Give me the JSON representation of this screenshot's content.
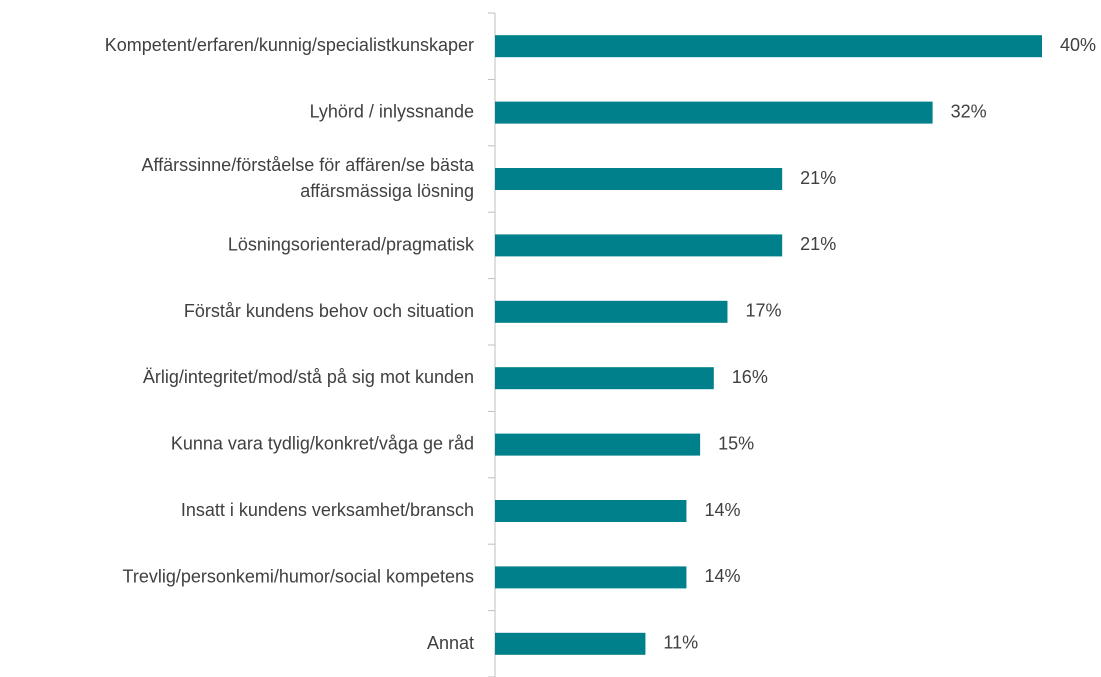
{
  "chart_data": {
    "type": "barh",
    "categories": [
      "Kompetent/erfaren/kunnig/specialistkunskaper",
      "Lyhörd / inlyssnande",
      "Affärssinne/förståelse för affären/se bästa\naffärsmässiga lösning",
      "Lösningsorienterad/pragmatisk",
      "Förstår kundens behov och situation",
      "Ärlig/integritet/mod/stå på sig mot kunden",
      "Kunna vara tydlig/konkret/våga ge råd",
      "Insatt i kundens verksamhet/bransch",
      "Trevlig/personkemi/humor/social kompetens",
      "Annat"
    ],
    "values": [
      40,
      32,
      21,
      21,
      17,
      16,
      15,
      14,
      14,
      11
    ],
    "value_labels": [
      "40%",
      "32%",
      "21%",
      "21%",
      "17%",
      "16%",
      "15%",
      "14%",
      "14%",
      "11%"
    ],
    "color": "#00808a"
  }
}
